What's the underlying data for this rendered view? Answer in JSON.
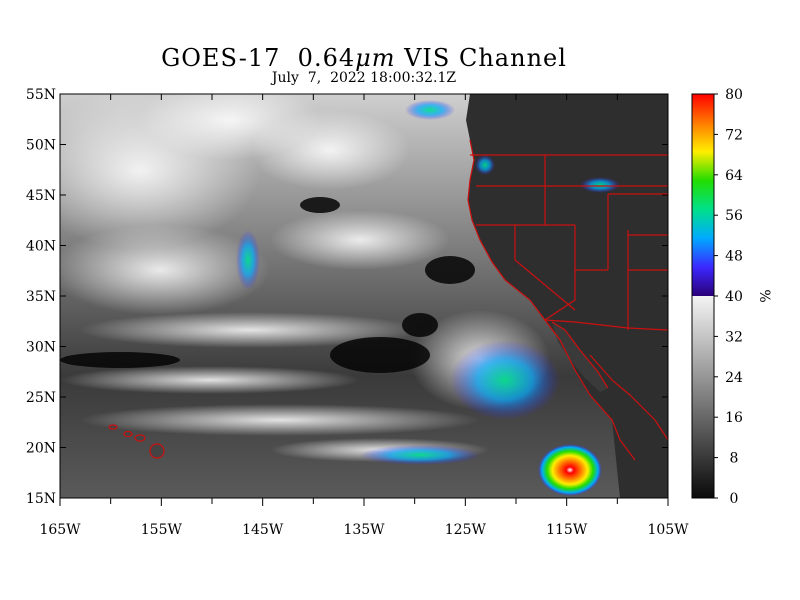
{
  "title_main": "GOES-17  0.64",
  "title_unit": "μm",
  "title_rest": " VIS Channel",
  "subtitle": "July  7,  2022 18:00:32.1Z",
  "colorbar_unit": "%",
  "lat_labels": [
    "55N",
    "50N",
    "45N",
    "40N",
    "35N",
    "30N",
    "25N",
    "20N",
    "15N"
  ],
  "lon_labels": [
    "165W",
    "155W",
    "145W",
    "135W",
    "125W",
    "115W",
    "105W"
  ],
  "colorbar_labels": [
    "80",
    "72",
    "64",
    "56",
    "48",
    "40",
    "32",
    "24",
    "16",
    "8",
    "0"
  ],
  "colorbar_range": [
    0,
    80
  ],
  "colorbar_split": 40,
  "colors": {
    "border": "#cc1010",
    "gray_dark": "#0a0a0a",
    "gray_light": "#f4f4f4",
    "scale_hi": [
      "#2a0078",
      "#3c28ff",
      "#00aaff",
      "#00e08a",
      "#22dd00",
      "#ffee00",
      "#ff7a00",
      "#ff0000"
    ]
  }
}
